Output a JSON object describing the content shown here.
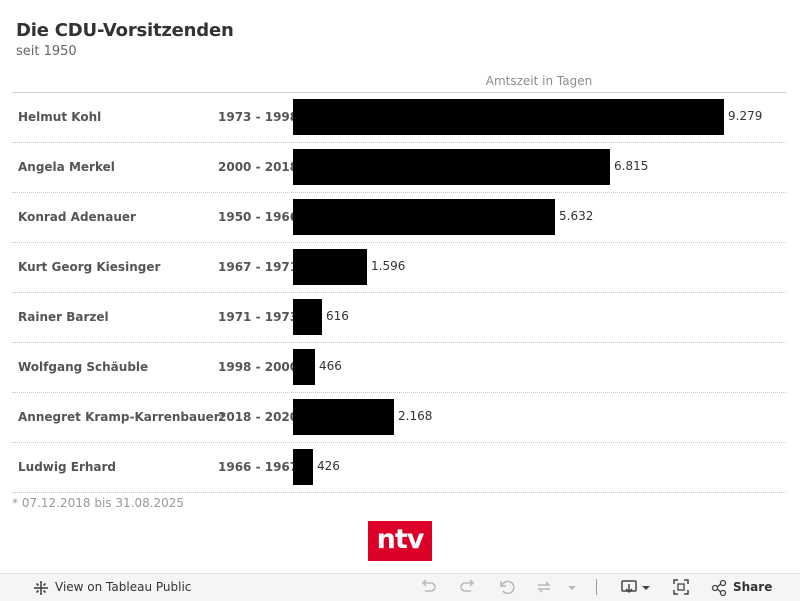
{
  "header": {
    "title": "Die CDU-Vorsitzenden",
    "subtitle": "seit 1950"
  },
  "chart_data": {
    "type": "bar",
    "orientation": "horizontal",
    "axis_title": "Amtszeit in Tagen",
    "bar_color": "#000000",
    "categories": [
      "Helmut Kohl",
      "Angela Merkel",
      "Konrad Adenauer",
      "Kurt Georg Kiesinger",
      "Rainer Barzel",
      "Wolfgang Schäuble",
      "Annegret Kramp-Karrenbauer*",
      "Ludwig Erhard"
    ],
    "periods": [
      "1973 - 1998",
      "2000 - 2018",
      "1950 - 1966",
      "1967 - 1971",
      "1971 - 1973",
      "1998 - 2000",
      "2018 - 2020",
      "1966 - 1967"
    ],
    "values": [
      9279,
      6815,
      5632,
      1596,
      616,
      466,
      2168,
      426
    ],
    "value_labels": [
      "9.279",
      "6.815",
      "5.632",
      "1.596",
      "616",
      "466",
      "2.168",
      "426"
    ],
    "xlim": [
      0,
      9279
    ]
  },
  "footnote": "* 07.12.2018 bis 31.08.2025",
  "logo": {
    "text": "ntv",
    "color": "#dc0028"
  },
  "toolbar": {
    "view_label": "View on Tableau Public",
    "share_label": "Share",
    "icons": [
      "tableau-icon",
      "undo-icon",
      "redo-icon",
      "revert-icon",
      "refresh-icon",
      "dropdown-caret-icon",
      "download-icon",
      "fullscreen-icon",
      "share-icon"
    ]
  }
}
